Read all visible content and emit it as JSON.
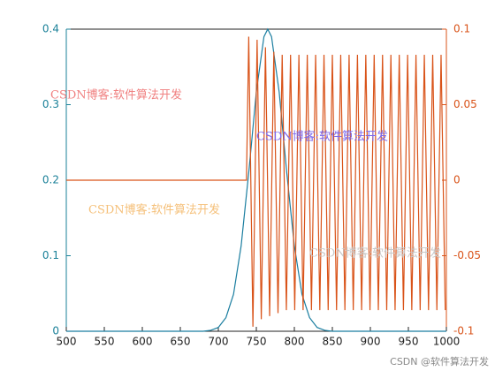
{
  "chart_data": {
    "type": "line",
    "xlim": [
      500,
      1000
    ],
    "xticks": [
      500,
      550,
      600,
      650,
      700,
      750,
      800,
      850,
      900,
      950,
      1000
    ],
    "ylim": [
      0,
      0.4
    ],
    "yticks": [
      0,
      0.1,
      0.2,
      0.3,
      0.4
    ],
    "y2lim": [
      -0.1,
      0.1
    ],
    "y2ticks": [
      -0.1,
      -0.05,
      0,
      0.05,
      0.1
    ],
    "y_color": "#1b8199",
    "y2_color": "#d95319",
    "series": [
      {
        "color": "#1b7ea0",
        "axis": "y",
        "x": [
          500,
          680,
          690,
          700,
          710,
          720,
          730,
          740,
          750,
          760,
          765,
          770,
          780,
          790,
          800,
          810,
          820,
          830,
          840,
          850,
          1000
        ],
        "values": [
          0,
          0,
          0.0012,
          0.005,
          0.018,
          0.049,
          0.113,
          0.21,
          0.317,
          0.39,
          0.4,
          0.39,
          0.317,
          0.21,
          0.113,
          0.049,
          0.018,
          0.005,
          0.0012,
          0,
          0
        ]
      },
      {
        "color": "#d95319",
        "axis": "y2",
        "x": [
          500,
          737,
          740,
          745.5,
          751,
          756.5,
          762,
          767.5,
          773,
          778.5,
          784,
          789.5,
          795,
          800.5,
          806,
          811.5,
          817,
          822.5,
          828,
          833.5,
          839,
          844.5,
          850,
          855.5,
          861,
          866.5,
          872,
          877.5,
          883,
          888.5,
          894,
          899.5,
          905,
          910.5,
          916,
          921.5,
          927,
          932.5,
          938,
          943.5,
          949,
          954.5,
          960,
          965.5,
          971,
          976.5,
          982,
          987.5,
          993,
          998.5
        ],
        "values": [
          0,
          0,
          0.095,
          -0.097,
          0.093,
          -0.092,
          0.088,
          -0.09,
          0.085,
          -0.088,
          0.083,
          -0.086,
          0.083,
          -0.086,
          0.083,
          -0.086,
          0.083,
          -0.086,
          0.083,
          -0.086,
          0.083,
          -0.086,
          0.083,
          -0.086,
          0.083,
          -0.086,
          0.083,
          -0.086,
          0.083,
          -0.086,
          0.083,
          -0.086,
          0.083,
          -0.086,
          0.083,
          -0.086,
          0.083,
          -0.086,
          0.083,
          -0.086,
          0.083,
          -0.086,
          0.083,
          -0.086,
          0.083,
          -0.086,
          0.083,
          -0.086,
          0.083,
          -0.086
        ]
      }
    ],
    "annotations": [
      {
        "text": "CSDN博客:软件算法开发",
        "color": "#f08080"
      },
      {
        "text": "CSDN博客:软件算法开发",
        "color": "#7b68ee"
      },
      {
        "text": "CSDN博客:软件算法开发",
        "color": "#f5c07a"
      },
      {
        "text": "CSDN博客:软件算法开发",
        "color": "#c8c8c8"
      },
      {
        "text": "CSDN @软件算法开发",
        "color": "#888888"
      }
    ]
  }
}
